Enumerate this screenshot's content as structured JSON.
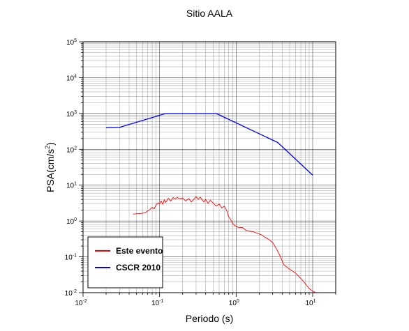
{
  "chart_data": {
    "type": "line",
    "title": "Sitio AALA",
    "xlabel": "Periodo (s)",
    "ylabel_parts": {
      "prefix": "PSA(cm/s",
      "sup": "2",
      "suffix": ")"
    },
    "x_scale": "log",
    "y_scale": "log",
    "xlim": [
      0.01,
      20
    ],
    "ylim": [
      0.01,
      100000
    ],
    "x_ticks": [
      {
        "base": "10",
        "exp": "-2",
        "value": 0.01
      },
      {
        "base": "10",
        "exp": "-1",
        "value": 0.1
      },
      {
        "base": "10",
        "exp": "0",
        "value": 1
      },
      {
        "base": "10",
        "exp": "1",
        "value": 10
      }
    ],
    "y_ticks": [
      {
        "base": "10",
        "exp": "-2",
        "value": 0.01
      },
      {
        "base": "10",
        "exp": "-1",
        "value": 0.1
      },
      {
        "base": "10",
        "exp": "0",
        "value": 1
      },
      {
        "base": "10",
        "exp": "1",
        "value": 10
      },
      {
        "base": "10",
        "exp": "2",
        "value": 100
      },
      {
        "base": "10",
        "exp": "3",
        "value": 1000
      },
      {
        "base": "10",
        "exp": "4",
        "value": 10000
      },
      {
        "base": "10",
        "exp": "5",
        "value": 100000
      }
    ],
    "grid": true,
    "legend_position": "bottom-left",
    "series": [
      {
        "name": "Este evento",
        "color": "#ff0000",
        "points": [
          [
            0.045,
            1.55
          ],
          [
            0.05,
            1.6
          ],
          [
            0.055,
            1.6
          ],
          [
            0.06,
            1.65
          ],
          [
            0.065,
            1.7
          ],
          [
            0.07,
            1.9
          ],
          [
            0.075,
            2.1
          ],
          [
            0.08,
            2.4
          ],
          [
            0.085,
            2.2
          ],
          [
            0.09,
            2.8
          ],
          [
            0.095,
            3.2
          ],
          [
            0.1,
            3.0
          ],
          [
            0.105,
            3.6
          ],
          [
            0.11,
            2.9
          ],
          [
            0.115,
            3.9
          ],
          [
            0.12,
            3.3
          ],
          [
            0.13,
            4.3
          ],
          [
            0.14,
            3.6
          ],
          [
            0.15,
            4.5
          ],
          [
            0.16,
            4.1
          ],
          [
            0.17,
            4.6
          ],
          [
            0.18,
            4.2
          ],
          [
            0.2,
            4.4
          ],
          [
            0.22,
            3.6
          ],
          [
            0.24,
            4.2
          ],
          [
            0.26,
            3.4
          ],
          [
            0.28,
            4.0
          ],
          [
            0.3,
            4.8
          ],
          [
            0.32,
            4.0
          ],
          [
            0.34,
            4.6
          ],
          [
            0.36,
            3.9
          ],
          [
            0.38,
            3.4
          ],
          [
            0.4,
            4.0
          ],
          [
            0.43,
            3.1
          ],
          [
            0.46,
            3.8
          ],
          [
            0.5,
            3.2
          ],
          [
            0.55,
            2.6
          ],
          [
            0.6,
            3.0
          ],
          [
            0.65,
            2.3
          ],
          [
            0.7,
            2.6
          ],
          [
            0.75,
            2.0
          ],
          [
            0.8,
            1.3
          ],
          [
            0.85,
            1.1
          ],
          [
            0.9,
            0.85
          ],
          [
            1.0,
            0.7
          ],
          [
            1.1,
            0.65
          ],
          [
            1.2,
            0.66
          ],
          [
            1.35,
            0.55
          ],
          [
            1.5,
            0.52
          ],
          [
            1.7,
            0.5
          ],
          [
            1.9,
            0.45
          ],
          [
            2.1,
            0.42
          ],
          [
            2.4,
            0.35
          ],
          [
            2.7,
            0.3
          ],
          [
            3.0,
            0.25
          ],
          [
            3.4,
            0.16
          ],
          [
            3.8,
            0.1
          ],
          [
            4.2,
            0.06
          ],
          [
            5.0,
            0.045
          ],
          [
            6.0,
            0.035
          ],
          [
            7.0,
            0.025
          ],
          [
            8.0,
            0.018
          ],
          [
            9.0,
            0.013
          ],
          [
            10.0,
            0.011
          ],
          [
            11.0,
            0.01
          ]
        ]
      },
      {
        "name": "CSCR 2010",
        "color": "#0000ff",
        "points": [
          [
            0.02,
            400
          ],
          [
            0.03,
            410
          ],
          [
            0.12,
            1000
          ],
          [
            0.55,
            1000
          ],
          [
            3.5,
            155
          ],
          [
            10.0,
            19
          ]
        ]
      }
    ]
  }
}
